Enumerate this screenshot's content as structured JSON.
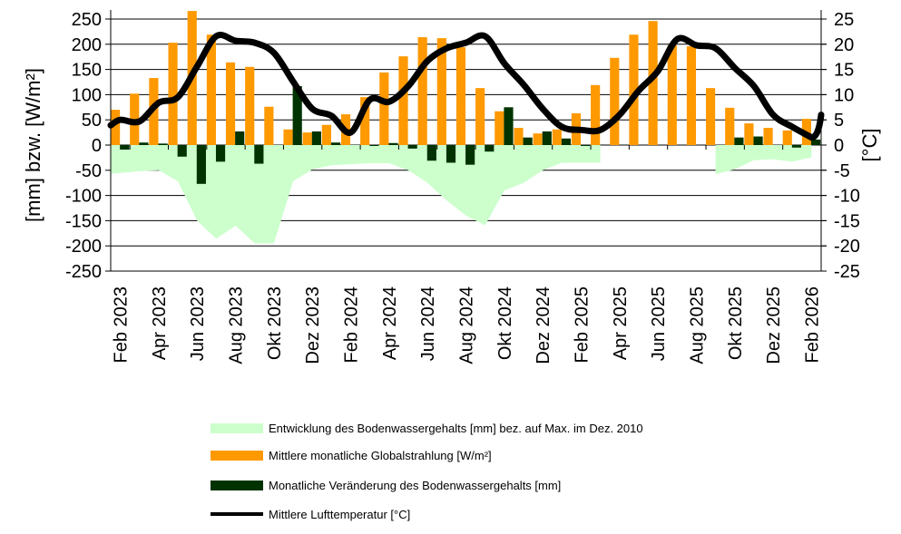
{
  "chart_data": {
    "type": "bar",
    "categories": [
      "Feb 2023",
      "Mär 2023",
      "Apr 2023",
      "Mai 2023",
      "Jun 2023",
      "Jul 2023",
      "Aug 2023",
      "Sep 2023",
      "Okt 2023",
      "Nov 2023",
      "Dez 2023",
      "Jan 2024",
      "Feb 2024",
      "Mär 2024",
      "Apr 2024",
      "Mai 2024",
      "Jun 2024",
      "Jul 2024",
      "Aug 2024",
      "Sep 2024",
      "Okt 2024",
      "Nov 2024",
      "Dez 2024",
      "Jan 2025",
      "Feb 2025",
      "Mär 2025",
      "Apr 2025",
      "Mai 2025",
      "Jun 2025",
      "Jul 2025",
      "Aug 2025",
      "Sep 2025",
      "Okt 2025",
      "Nov 2025",
      "Dez 2025",
      "Jan 2026",
      "Feb 2026"
    ],
    "tick_labels": [
      "Feb 2023",
      "Apr 2023",
      "Jun 2023",
      "Aug 2023",
      "Okt 2023",
      "Dez 2023",
      "Feb 2024",
      "Apr 2024",
      "Jun 2024",
      "Aug 2024",
      "Okt 2024",
      "Dez 2024",
      "Feb 2025",
      "Apr 2025",
      "Jun 2025",
      "Aug 2025",
      "Okt 2025",
      "Dez 2025",
      "Feb 2026"
    ],
    "ylabel": "[mm] bzw. [W/m²]",
    "y2label": "[°C]",
    "ylim": [
      -250,
      250
    ],
    "y2lim": [
      -25,
      25
    ],
    "yticks": [
      250,
      200,
      150,
      100,
      50,
      0,
      -50,
      -100,
      -150,
      -200,
      -250
    ],
    "y2ticks": [
      25,
      20,
      15,
      10,
      5,
      0,
      -5,
      -10,
      -15,
      -20,
      -25
    ],
    "grid": true,
    "legend_position": "bottom",
    "series": [
      {
        "name": "Entwicklung des Bodenwassergehalts [mm] bez. auf Max. im Dez. 2010",
        "type": "area",
        "axis": "left",
        "color": "#ccffcc",
        "values": [
          -57,
          -52,
          -50,
          -72,
          -150,
          -186,
          -160,
          -195,
          -195,
          -72,
          -48,
          -40,
          -38,
          -36,
          -36,
          -50,
          -75,
          -110,
          -140,
          -159,
          -90,
          -75,
          -50,
          -35,
          -35,
          -35,
          null,
          null,
          null,
          null,
          null,
          -58,
          -48,
          -30,
          -28,
          -33,
          -24
        ]
      },
      {
        "name": "Mittlere monatliche Globalstrahlung [W/m²]",
        "type": "bar",
        "axis": "left",
        "color": "#ff9900",
        "values": [
          70,
          102,
          133,
          203,
          266,
          219,
          164,
          155,
          76,
          31,
          25,
          40,
          61,
          95,
          144,
          176,
          214,
          212,
          194,
          113,
          67,
          34,
          23,
          31,
          63,
          119,
          173,
          219,
          246,
          198,
          196,
          113,
          74,
          43,
          34,
          29,
          52
        ]
      },
      {
        "name": "Monatliche Veränderung des Bodenwassergehalts [mm]",
        "type": "bar",
        "axis": "left",
        "color": "#003300",
        "values": [
          -9,
          5,
          3,
          -23,
          -77,
          -33,
          27,
          -37,
          0,
          117,
          27,
          5,
          0,
          -1,
          4,
          -7,
          -31,
          -35,
          -39,
          -13,
          75,
          15,
          27,
          13,
          -1,
          null,
          null,
          null,
          null,
          null,
          null,
          null,
          15,
          17,
          0,
          -5,
          11
        ]
      },
      {
        "name": "Mittlere Lufttemperatur [°C]",
        "type": "line",
        "axis": "right",
        "color": "#000000",
        "values": [
          5.0,
          4.7,
          8.4,
          9.5,
          15.6,
          21.6,
          20.7,
          20.3,
          18.3,
          12.6,
          7.2,
          5.8,
          2.5,
          9.0,
          8.6,
          11.7,
          16.7,
          19.2,
          20.3,
          21.6,
          16.2,
          12.0,
          7.2,
          3.6,
          3.0,
          3.0,
          6.0,
          10.8,
          14.7,
          21.0,
          19.8,
          19.2,
          15.3,
          11.7,
          6.0,
          3.6,
          1.5
        ]
      }
    ]
  }
}
